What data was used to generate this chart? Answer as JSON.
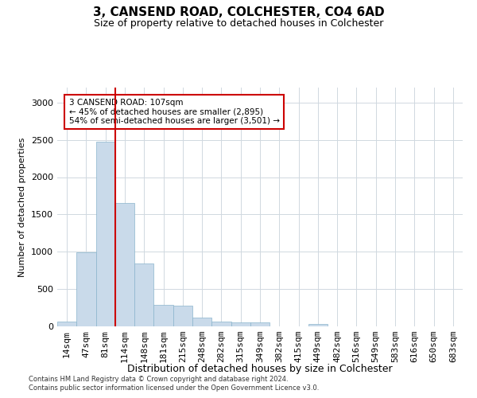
{
  "title": "3, CANSEND ROAD, COLCHESTER, CO4 6AD",
  "subtitle": "Size of property relative to detached houses in Colchester",
  "xlabel": "Distribution of detached houses by size in Colchester",
  "ylabel": "Number of detached properties",
  "bar_color": "#c9daea",
  "bar_edge_color": "#8ab4cc",
  "background_color": "#ffffff",
  "grid_color": "#d0d8e0",
  "annotation_box_color": "#cc0000",
  "vline_color": "#cc0000",
  "vline_x": 2.5,
  "annotation_text": "3 CANSEND ROAD: 107sqm\n← 45% of detached houses are smaller (2,895)\n54% of semi-detached houses are larger (3,501) →",
  "categories": [
    "14sqm",
    "47sqm",
    "81sqm",
    "114sqm",
    "148sqm",
    "181sqm",
    "215sqm",
    "248sqm",
    "282sqm",
    "315sqm",
    "349sqm",
    "382sqm",
    "415sqm",
    "449sqm",
    "482sqm",
    "516sqm",
    "549sqm",
    "583sqm",
    "616sqm",
    "650sqm",
    "683sqm"
  ],
  "values": [
    60,
    990,
    2470,
    1650,
    840,
    290,
    280,
    115,
    60,
    50,
    55,
    0,
    0,
    35,
    0,
    0,
    0,
    0,
    0,
    0,
    0
  ],
  "ylim": [
    0,
    3200
  ],
  "yticks": [
    0,
    500,
    1000,
    1500,
    2000,
    2500,
    3000
  ],
  "footer1": "Contains HM Land Registry data © Crown copyright and database right 2024.",
  "footer2": "Contains public sector information licensed under the Open Government Licence v3.0."
}
